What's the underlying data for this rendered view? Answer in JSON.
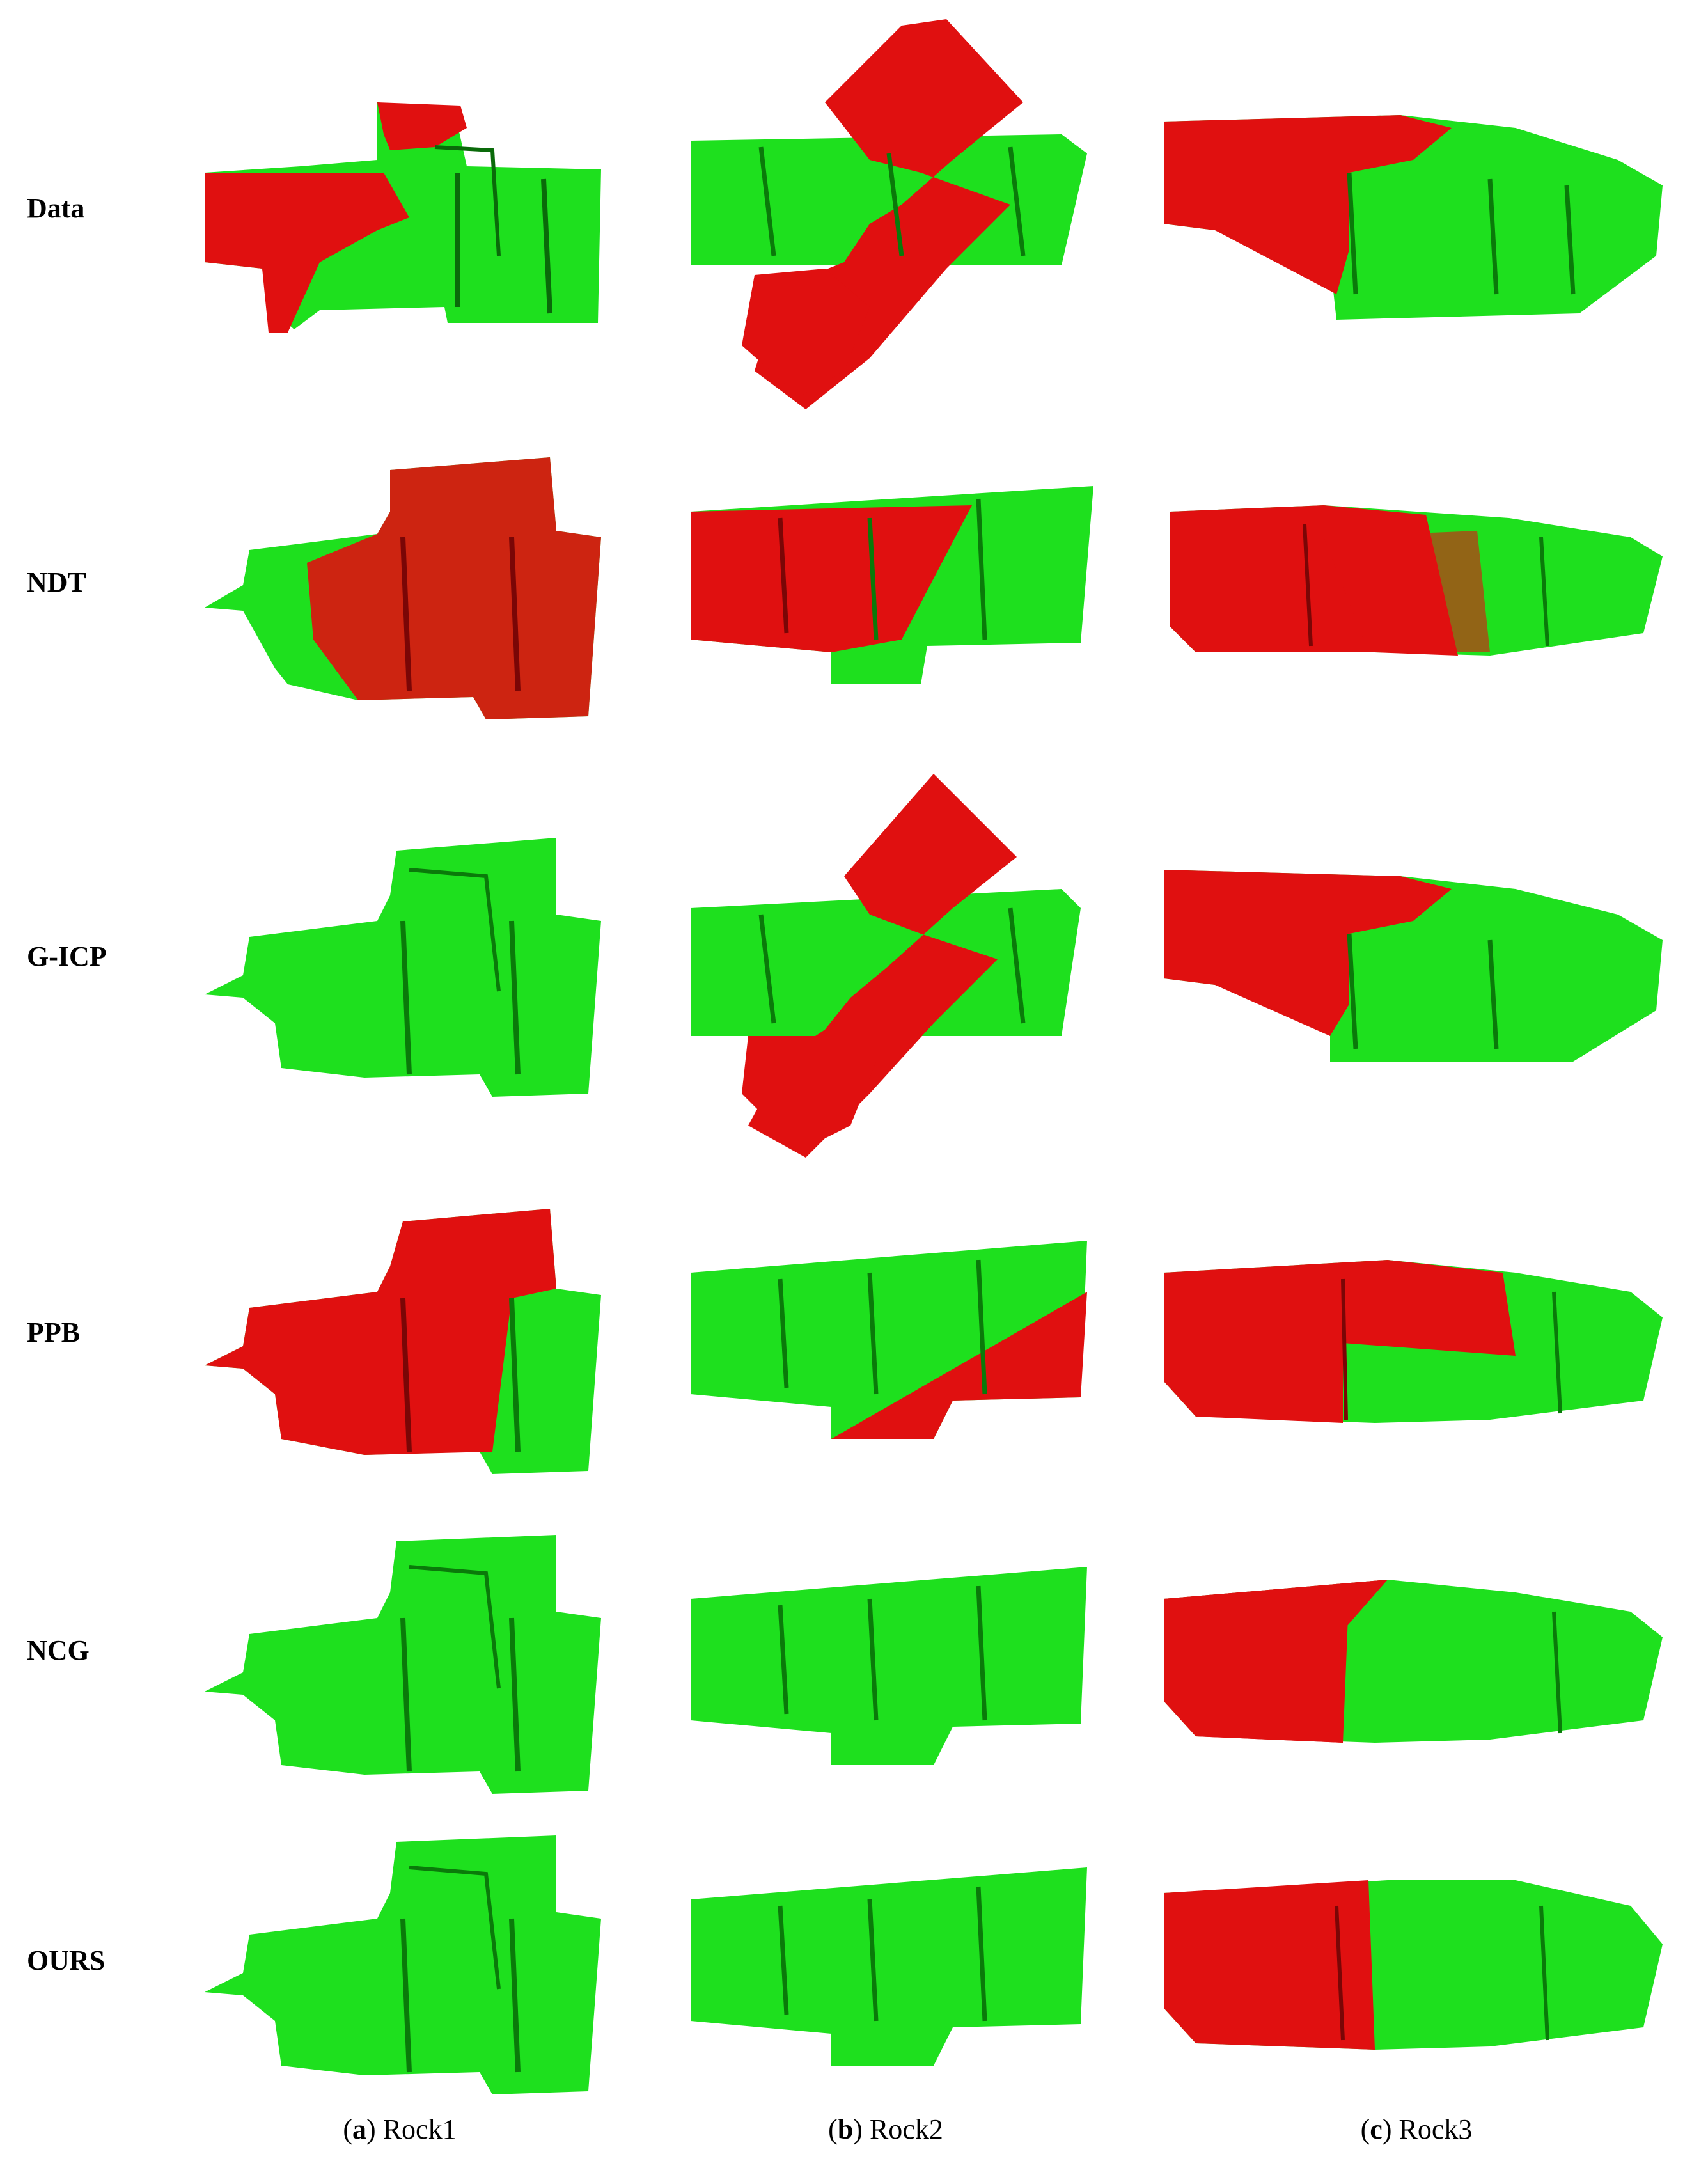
{
  "rows": [
    "Data",
    "NDT",
    "G-ICP",
    "PPB",
    "NCG",
    "OURS"
  ],
  "captions": [
    {
      "letter": "a",
      "name": "Rock1"
    },
    {
      "letter": "b",
      "name": "Rock2"
    },
    {
      "letter": "c",
      "name": "Rock3"
    }
  ],
  "colors": {
    "green": "#1ee01e",
    "green_dark": "#0a8a0a",
    "red": "#e01010",
    "red_dark": "#8a0606"
  },
  "scene_red_share": [
    [
      0.55,
      0.55,
      0.5
    ],
    [
      0.6,
      0.55,
      0.45
    ],
    [
      0.05,
      0.55,
      0.5
    ],
    [
      0.65,
      0.3,
      0.45
    ],
    [
      0.02,
      0.0,
      0.45
    ],
    [
      0.0,
      0.0,
      0.4
    ]
  ]
}
